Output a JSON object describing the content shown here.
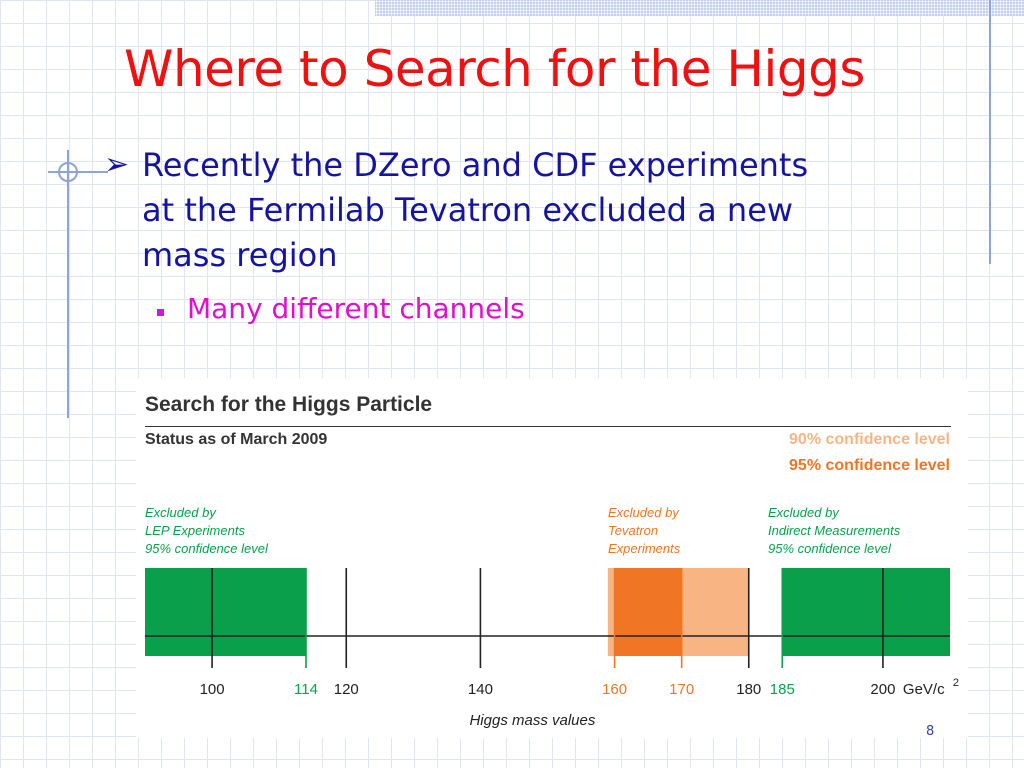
{
  "slide": {
    "title": "Where to Search for the Higgs",
    "bullet": "Recently the DZero and CDF experiments at the Fermilab Tevatron excluded a new mass region",
    "sub_bullet": "Many different channels",
    "page_number": "8"
  },
  "figure": {
    "title": "Search for the Higgs Particle",
    "subtitle": "Status as of March 2009",
    "legend_90": "90% confidence level",
    "legend_95": "95% confidence level",
    "lep_label": [
      "Excluded by",
      "LEP Experiments",
      "95% confidence level"
    ],
    "tevatron_label": [
      "Excluded by",
      "Tevatron",
      "Experiments"
    ],
    "indirect_label": [
      "Excluded by",
      "Indirect Measurements",
      "95% confidence level"
    ],
    "axis_title": "Higgs mass values",
    "unit": "GeV/c",
    "unit_exponent": "2"
  },
  "chart_data": {
    "type": "bar",
    "xlim": [
      90,
      210
    ],
    "excluded_regions": [
      {
        "name": "LEP Experiments 95% confidence level",
        "from": 90,
        "to": 114,
        "color": "#0aa04b"
      },
      {
        "name": "Tevatron 90% confidence level",
        "from": 159,
        "to": 180,
        "color": "#f8b583"
      },
      {
        "name": "Tevatron 95% confidence level",
        "from": 160,
        "to": 170,
        "color": "#f07524"
      },
      {
        "name": "Indirect Measurements 95% confidence level",
        "from": 185,
        "to": 210,
        "color": "#0aa04b"
      }
    ],
    "ticks": [
      {
        "value": 100,
        "label": "100",
        "color": "#222222"
      },
      {
        "value": 114,
        "label": "114",
        "color": "#0aa04b"
      },
      {
        "value": 120,
        "label": "120",
        "color": "#222222"
      },
      {
        "value": 140,
        "label": "140",
        "color": "#222222"
      },
      {
        "value": 160,
        "label": "160",
        "color": "#f07524"
      },
      {
        "value": 170,
        "label": "170",
        "color": "#f07524"
      },
      {
        "value": 180,
        "label": "180",
        "color": "#222222"
      },
      {
        "value": 185,
        "label": "185",
        "color": "#0aa04b"
      },
      {
        "value": 200,
        "label": "200",
        "color": "#222222"
      }
    ]
  },
  "colors": {
    "title": "#ee1111",
    "bullet": "#1414a0",
    "sub_bullet": "#e010cc",
    "green": "#0aa04b",
    "orange_dark": "#f07524",
    "orange_light": "#f8b583"
  }
}
